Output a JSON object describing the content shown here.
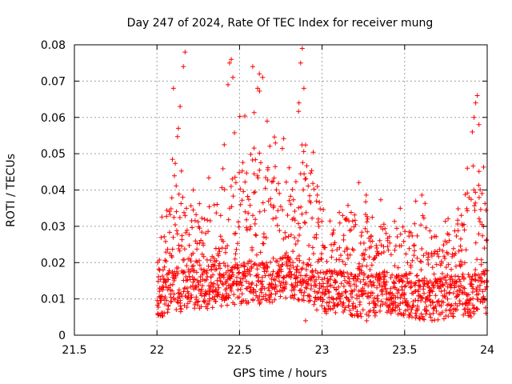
{
  "chart_data": {
    "type": "scatter",
    "title": "Day 247 of 2024, Rate Of TEC Index for receiver mung",
    "xlabel": "GPS time / hours",
    "ylabel": "ROTI / TECUs",
    "xlim": [
      21.5,
      24
    ],
    "ylim": [
      0,
      0.08
    ],
    "x_ticks": [
      "21.5",
      "22",
      "22.5",
      "23",
      "23.5",
      "24"
    ],
    "y_ticks": [
      "0",
      "0.01",
      "0.02",
      "0.03",
      "0.04",
      "0.05",
      "0.06",
      "0.07",
      "0.08"
    ],
    "grid": true,
    "marker": "+",
    "series_color": "#ff0000",
    "x_start": 22.0,
    "x_end": 24.0,
    "sample_interval_hours": 0.00333,
    "envelope": [
      {
        "x": 22.0,
        "baseline": 0.01,
        "upper": 0.022
      },
      {
        "x": 22.1,
        "baseline": 0.012,
        "upper": 0.06
      },
      {
        "x": 22.2,
        "baseline": 0.013,
        "upper": 0.045
      },
      {
        "x": 22.3,
        "baseline": 0.013,
        "upper": 0.042
      },
      {
        "x": 22.4,
        "baseline": 0.014,
        "upper": 0.055
      },
      {
        "x": 22.5,
        "baseline": 0.014,
        "upper": 0.062
      },
      {
        "x": 22.6,
        "baseline": 0.014,
        "upper": 0.07
      },
      {
        "x": 22.7,
        "baseline": 0.015,
        "upper": 0.058
      },
      {
        "x": 22.8,
        "baseline": 0.016,
        "upper": 0.055
      },
      {
        "x": 22.9,
        "baseline": 0.015,
        "upper": 0.075
      },
      {
        "x": 23.0,
        "baseline": 0.012,
        "upper": 0.04
      },
      {
        "x": 23.1,
        "baseline": 0.012,
        "upper": 0.038
      },
      {
        "x": 23.2,
        "baseline": 0.011,
        "upper": 0.044
      },
      {
        "x": 23.3,
        "baseline": 0.011,
        "upper": 0.042
      },
      {
        "x": 23.4,
        "baseline": 0.012,
        "upper": 0.035
      },
      {
        "x": 23.5,
        "baseline": 0.011,
        "upper": 0.036
      },
      {
        "x": 23.6,
        "baseline": 0.01,
        "upper": 0.04
      },
      {
        "x": 23.7,
        "baseline": 0.01,
        "upper": 0.032
      },
      {
        "x": 23.8,
        "baseline": 0.011,
        "upper": 0.034
      },
      {
        "x": 23.9,
        "baseline": 0.011,
        "upper": 0.05
      },
      {
        "x": 24.0,
        "baseline": 0.012,
        "upper": 0.065
      }
    ],
    "notable_points": [
      {
        "x": 22.1,
        "y": 0.068
      },
      {
        "x": 22.16,
        "y": 0.074
      },
      {
        "x": 22.17,
        "y": 0.078
      },
      {
        "x": 22.14,
        "y": 0.063
      },
      {
        "x": 22.13,
        "y": 0.057
      },
      {
        "x": 22.44,
        "y": 0.075
      },
      {
        "x": 22.45,
        "y": 0.076
      },
      {
        "x": 22.46,
        "y": 0.071
      },
      {
        "x": 22.43,
        "y": 0.069
      },
      {
        "x": 22.58,
        "y": 0.074
      },
      {
        "x": 22.62,
        "y": 0.072
      },
      {
        "x": 22.64,
        "y": 0.071
      },
      {
        "x": 22.61,
        "y": 0.068
      },
      {
        "x": 22.88,
        "y": 0.079
      },
      {
        "x": 22.87,
        "y": 0.075
      },
      {
        "x": 22.89,
        "y": 0.068
      },
      {
        "x": 22.86,
        "y": 0.064
      },
      {
        "x": 23.93,
        "y": 0.064
      },
      {
        "x": 23.94,
        "y": 0.066
      },
      {
        "x": 23.92,
        "y": 0.06
      },
      {
        "x": 23.95,
        "y": 0.058
      },
      {
        "x": 23.91,
        "y": 0.056
      },
      {
        "x": 23.88,
        "y": 0.046
      },
      {
        "x": 22.22,
        "y": 0.04
      },
      {
        "x": 22.9,
        "y": 0.004
      },
      {
        "x": 23.27,
        "y": 0.004
      }
    ]
  }
}
